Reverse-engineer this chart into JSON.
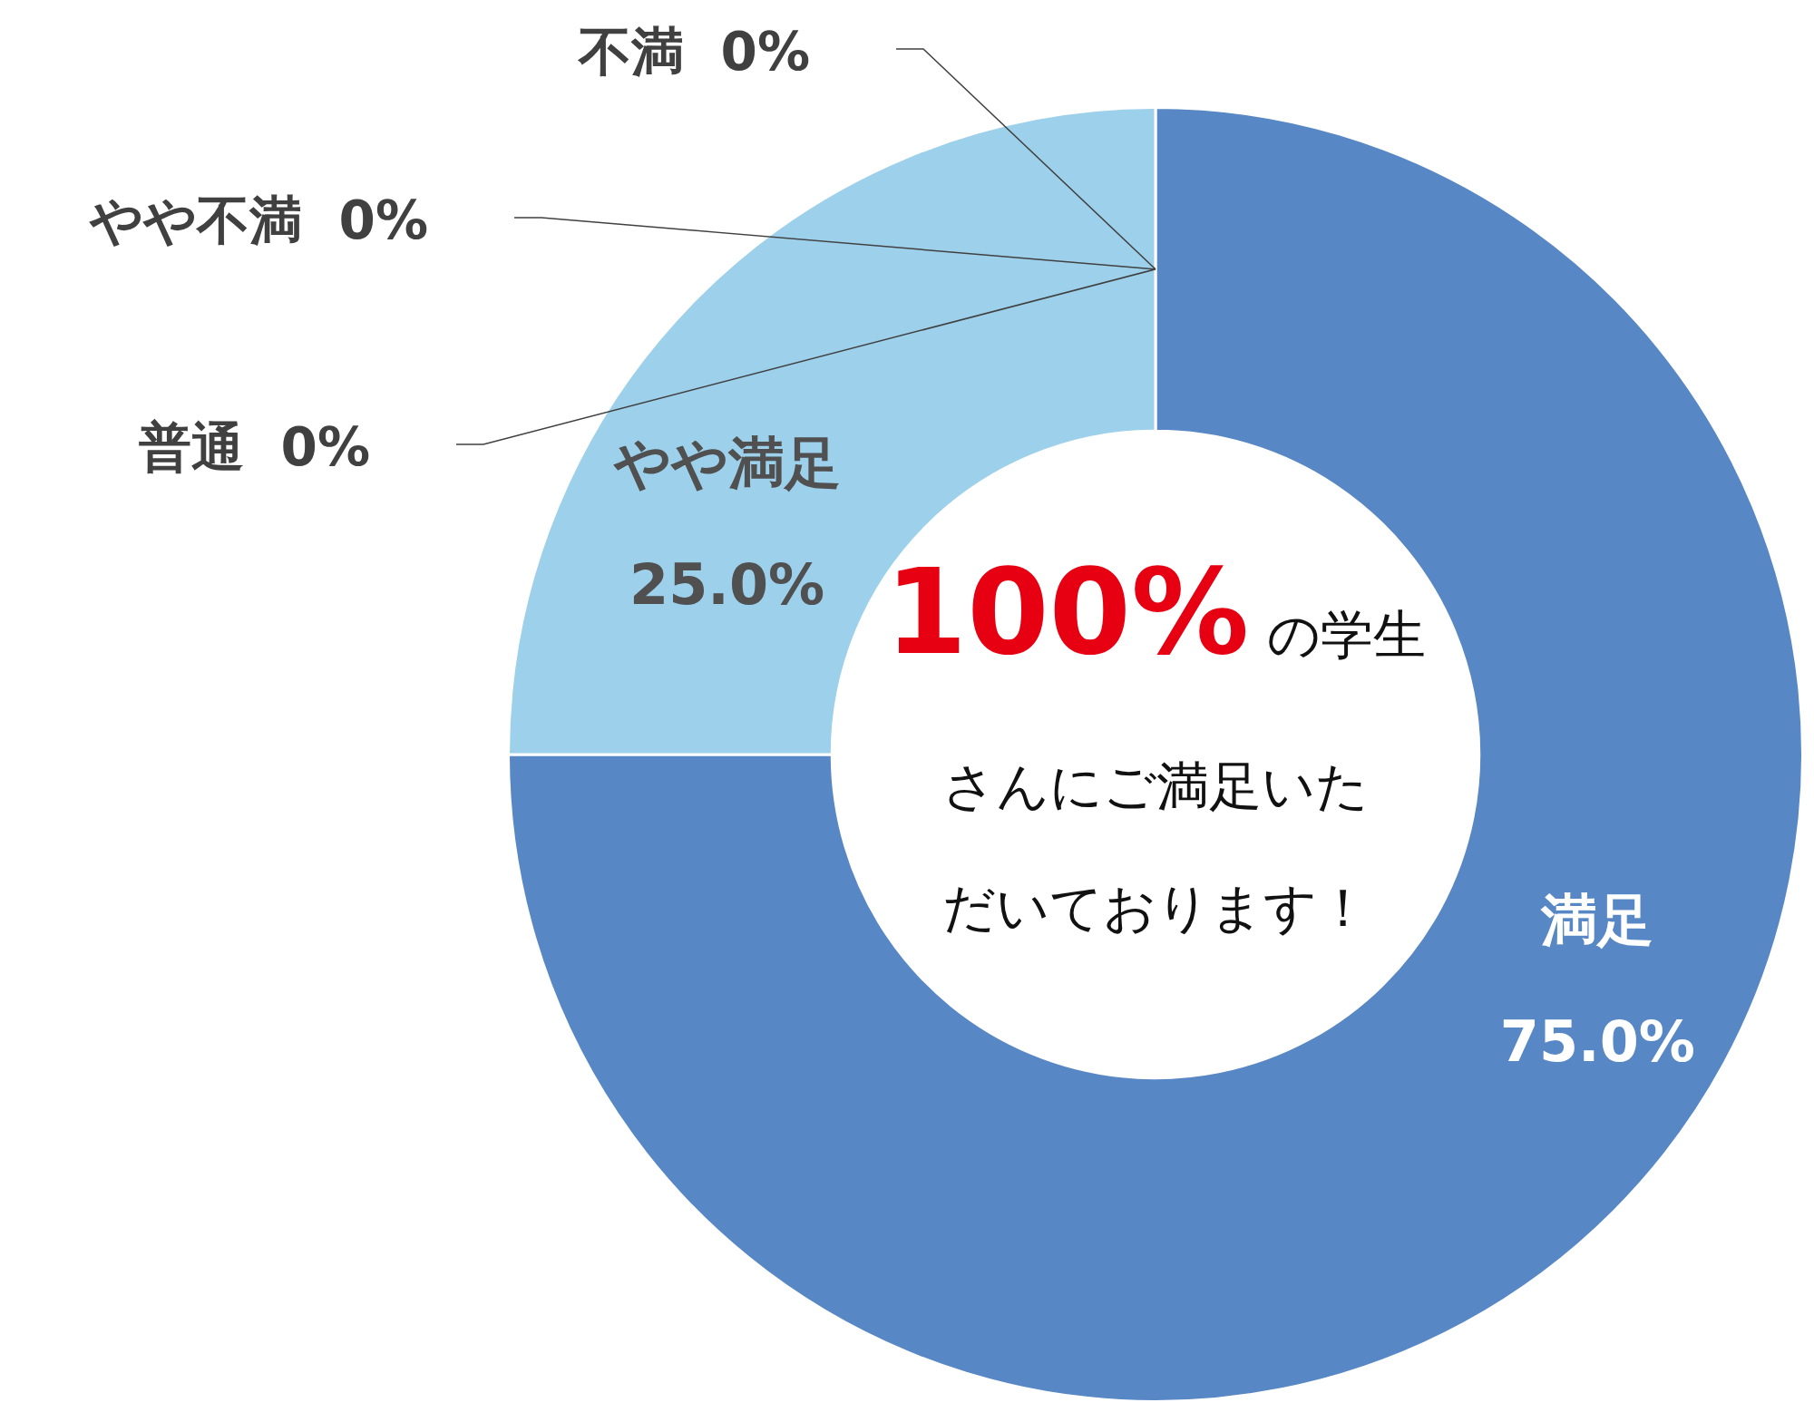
{
  "chart_data": {
    "type": "donut",
    "categories": [
      "満足",
      "やや満足",
      "普通",
      "やや不満",
      "不満"
    ],
    "values": [
      75.0,
      25.0,
      0,
      0,
      0
    ],
    "value_labels": [
      "75.0%",
      "25.0%",
      "0%",
      "0%",
      "0%"
    ],
    "colors": [
      "#5787c4",
      "#9dd0ea",
      "#a5a5a5",
      "#ffc000",
      "#ed7d31"
    ],
    "annotations": [
      "100%",
      "の学生",
      "さんにご満足いた",
      "だいております！"
    ],
    "legend": false
  }
}
